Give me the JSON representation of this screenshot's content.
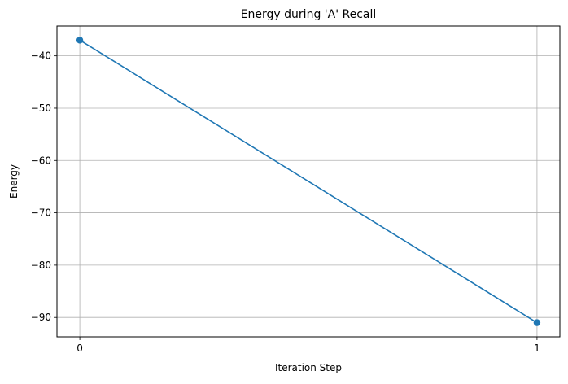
{
  "chart_data": {
    "type": "line",
    "title": "Energy during 'A' Recall",
    "xlabel": "Iteration Step",
    "ylabel": "Energy",
    "x": [
      0,
      1
    ],
    "series": [
      {
        "values": [
          -37,
          -91
        ],
        "color": "#1f77b4",
        "marker": "circle"
      }
    ],
    "xlim": [
      -0.05,
      1.05
    ],
    "ylim": [
      -93.7,
      -34.3
    ],
    "xticks": [
      0,
      1
    ],
    "xtick_labels": [
      "0",
      "1"
    ],
    "yticks": [
      -90,
      -80,
      -70,
      -60,
      -50,
      -40
    ],
    "ytick_labels": [
      "−90",
      "−80",
      "−70",
      "−60",
      "−50",
      "−40"
    ],
    "grid": true,
    "legend": "none"
  }
}
